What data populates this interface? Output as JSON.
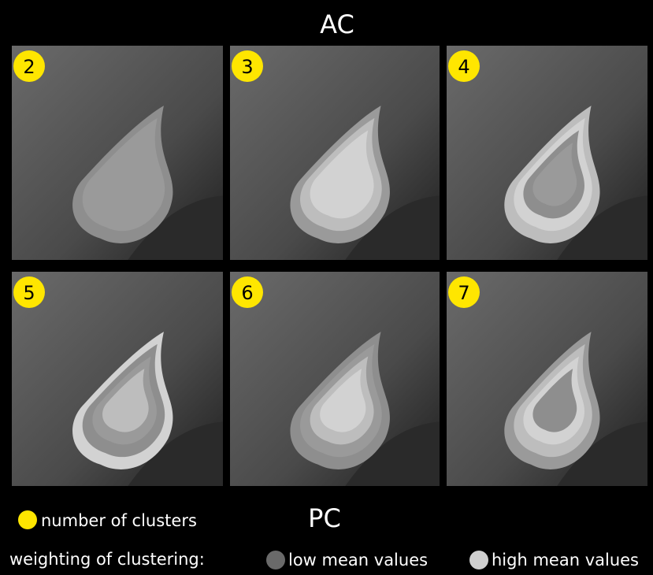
{
  "header": {
    "top_label": "AC",
    "bottom_label": "PC"
  },
  "panels": [
    {
      "label": "2"
    },
    {
      "label": "3"
    },
    {
      "label": "4"
    },
    {
      "label": "5"
    },
    {
      "label": "6"
    },
    {
      "label": "7"
    }
  ],
  "legend": {
    "marker_label": "number of clusters",
    "weighting_label": "weighting of clustering:",
    "low_label": "low mean values",
    "high_label": "high mean values"
  }
}
